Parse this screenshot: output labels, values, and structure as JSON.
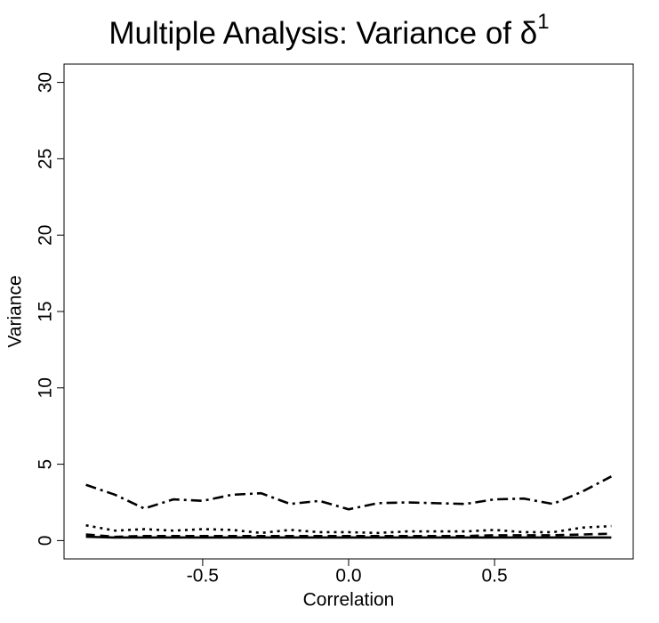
{
  "chart_data": {
    "type": "line",
    "title": "Multiple Analysis: Variance of δ",
    "title_superscript": "1",
    "xlabel": "Correlation",
    "ylabel": "Variance",
    "x": [
      -0.9,
      -0.8,
      -0.7,
      -0.6,
      -0.5,
      -0.4,
      -0.3,
      -0.2,
      -0.1,
      0.0,
      0.1,
      0.2,
      0.3,
      0.4,
      0.5,
      0.6,
      0.7,
      0.8,
      0.9
    ],
    "series": [
      {
        "color": "#000000",
        "dash": "dashdot",
        "values": [
          3.65,
          3.0,
          2.1,
          2.7,
          2.6,
          3.0,
          3.1,
          2.4,
          2.6,
          2.05,
          2.45,
          2.5,
          2.45,
          2.4,
          2.7,
          2.75,
          2.4,
          3.2,
          4.2
        ]
      },
      {
        "color": "#000000",
        "dash": "dotted",
        "values": [
          1.0,
          0.65,
          0.75,
          0.65,
          0.75,
          0.7,
          0.5,
          0.7,
          0.55,
          0.55,
          0.5,
          0.6,
          0.6,
          0.6,
          0.7,
          0.55,
          0.55,
          0.85,
          0.95
        ]
      },
      {
        "color": "#000000",
        "dash": "dashed",
        "values": [
          0.4,
          0.25,
          0.3,
          0.3,
          0.3,
          0.3,
          0.3,
          0.3,
          0.3,
          0.3,
          0.3,
          0.3,
          0.3,
          0.3,
          0.35,
          0.35,
          0.35,
          0.4,
          0.45
        ]
      },
      {
        "color": "#000000",
        "dash": "solid",
        "values": [
          0.25,
          0.2,
          0.2,
          0.2,
          0.2,
          0.2,
          0.2,
          0.2,
          0.2,
          0.2,
          0.2,
          0.2,
          0.2,
          0.2,
          0.2,
          0.2,
          0.2,
          0.2,
          0.2
        ]
      }
    ],
    "xlim": [
      -0.975,
      0.975
    ],
    "xticks": [
      -0.5,
      {
        "value": 0,
        "label": "0.0"
      },
      0.5
    ],
    "ylim": [
      -1.2,
      31.2
    ],
    "yticks": [
      0,
      5,
      10,
      15,
      20,
      25,
      30
    ],
    "grid": false
  }
}
